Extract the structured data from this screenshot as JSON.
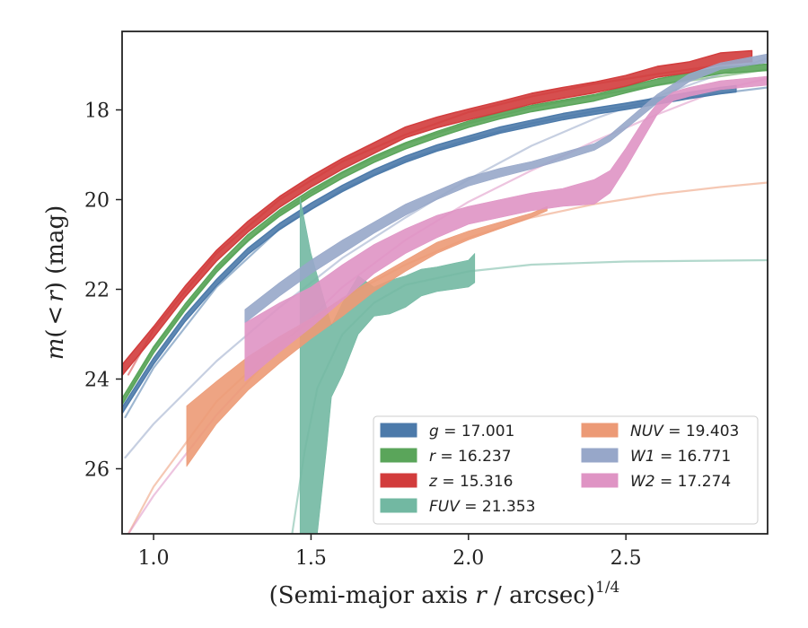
{
  "chart_data": {
    "type": "area",
    "xlabel": "(Semi-major axis r / arcsec)",
    "xlabel_main": "(Semi-major axis ",
    "xlabel_var": "r",
    "xlabel_rest": " / arcsec)",
    "xlabel_sup": "1/4",
    "ylabel_m": "m",
    "ylabel_paren_open": "(",
    "ylabel_lt": "<",
    "ylabel_r": "r",
    "ylabel_paren_close": ")",
    "ylabel_unit": " (mag)",
    "xlim": [
      0.9,
      2.95
    ],
    "ylim": [
      27.45,
      16.25
    ],
    "y_inverted": true,
    "xticks": [
      1.0,
      1.5,
      2.0,
      2.5
    ],
    "xtick_labels": [
      "1.0",
      "1.5",
      "2.0",
      "2.5"
    ],
    "yticks": [
      18,
      20,
      22,
      24,
      26
    ],
    "ytick_labels": [
      "18",
      "20",
      "22",
      "24",
      "26"
    ],
    "grid": false,
    "legend_placement": "lower-right",
    "legend": [
      {
        "band": "g",
        "value": "17.001",
        "color": "#4c7aaa"
      },
      {
        "band": "r",
        "value": "16.237",
        "color": "#5aa55a"
      },
      {
        "band": "z",
        "value": "15.316",
        "color": "#d23c3c"
      },
      {
        "band": "FUV",
        "value": "21.353",
        "color": "#72b8a2"
      },
      {
        "band": "NUV",
        "value": "19.403",
        "color": "#ec9a76"
      },
      {
        "band": "W1",
        "value": "16.771",
        "color": "#97a7c9"
      },
      {
        "band": "W2",
        "value": "17.274",
        "color": "#df94c4"
      }
    ],
    "series": [
      {
        "name": "g",
        "color": "#4c7aaa",
        "profile": [
          [
            0.9,
            24.7
          ],
          [
            1.0,
            23.6
          ],
          [
            1.1,
            22.65
          ],
          [
            1.2,
            21.85
          ],
          [
            1.3,
            21.15
          ],
          [
            1.4,
            20.6
          ],
          [
            1.5,
            20.15
          ],
          [
            1.6,
            19.75
          ],
          [
            1.7,
            19.4
          ],
          [
            1.8,
            19.1
          ],
          [
            1.9,
            18.85
          ],
          [
            2.0,
            18.65
          ],
          [
            2.1,
            18.45
          ],
          [
            2.2,
            18.3
          ],
          [
            2.3,
            18.15
          ],
          [
            2.4,
            18.03
          ],
          [
            2.5,
            17.92
          ],
          [
            2.6,
            17.8
          ],
          [
            2.7,
            17.68
          ],
          [
            2.8,
            17.57
          ],
          [
            2.85,
            17.53
          ]
        ],
        "halfwidth": 0.07,
        "model": [
          [
            0.91,
            24.85
          ],
          [
            1.0,
            23.75
          ],
          [
            1.2,
            21.95
          ],
          [
            1.4,
            20.65
          ],
          [
            1.6,
            19.78
          ],
          [
            1.8,
            19.12
          ],
          [
            2.0,
            18.66
          ],
          [
            2.2,
            18.3
          ],
          [
            2.4,
            18.03
          ],
          [
            2.6,
            17.82
          ],
          [
            2.8,
            17.63
          ],
          [
            2.95,
            17.5
          ]
        ]
      },
      {
        "name": "r",
        "color": "#5aa55a",
        "profile": [
          [
            0.9,
            24.5
          ],
          [
            1.0,
            23.35
          ],
          [
            1.1,
            22.4
          ],
          [
            1.2,
            21.55
          ],
          [
            1.3,
            20.85
          ],
          [
            1.4,
            20.3
          ],
          [
            1.5,
            19.85
          ],
          [
            1.6,
            19.45
          ],
          [
            1.7,
            19.1
          ],
          [
            1.8,
            18.8
          ],
          [
            1.9,
            18.55
          ],
          [
            2.0,
            18.32
          ],
          [
            2.1,
            18.13
          ],
          [
            2.2,
            17.97
          ],
          [
            2.3,
            17.85
          ],
          [
            2.4,
            17.73
          ],
          [
            2.5,
            17.55
          ],
          [
            2.6,
            17.38
          ],
          [
            2.7,
            17.25
          ],
          [
            2.8,
            17.12
          ],
          [
            2.95,
            17.05
          ]
        ],
        "halfwidth": 0.07,
        "model": [
          [
            0.92,
            24.3
          ],
          [
            1.0,
            23.3
          ],
          [
            1.2,
            21.55
          ],
          [
            1.4,
            20.3
          ],
          [
            1.6,
            19.4
          ],
          [
            1.8,
            18.75
          ],
          [
            2.0,
            18.3
          ],
          [
            2.2,
            17.95
          ],
          [
            2.4,
            17.68
          ],
          [
            2.6,
            17.45
          ],
          [
            2.8,
            17.25
          ],
          [
            2.95,
            17.1
          ]
        ]
      },
      {
        "name": "z",
        "color": "#d23c3c",
        "profile": [
          [
            0.9,
            23.8
          ],
          [
            1.0,
            22.95
          ],
          [
            1.1,
            22.05
          ],
          [
            1.2,
            21.25
          ],
          [
            1.3,
            20.6
          ],
          [
            1.4,
            20.05
          ],
          [
            1.5,
            19.6
          ],
          [
            1.6,
            19.2
          ],
          [
            1.7,
            18.85
          ],
          [
            1.8,
            18.5
          ],
          [
            1.9,
            18.28
          ],
          [
            2.0,
            18.1
          ],
          [
            2.1,
            17.93
          ],
          [
            2.2,
            17.75
          ],
          [
            2.3,
            17.62
          ],
          [
            2.4,
            17.5
          ],
          [
            2.5,
            17.35
          ],
          [
            2.6,
            17.15
          ],
          [
            2.7,
            17.05
          ],
          [
            2.8,
            16.85
          ],
          [
            2.9,
            16.8
          ]
        ],
        "halfwidth": 0.12,
        "model": [
          [
            0.92,
            23.9
          ],
          [
            1.0,
            22.9
          ],
          [
            1.2,
            21.2
          ],
          [
            1.4,
            20.0
          ],
          [
            1.6,
            19.15
          ],
          [
            1.8,
            18.55
          ],
          [
            2.0,
            18.05
          ],
          [
            2.2,
            17.7
          ],
          [
            2.4,
            17.42
          ],
          [
            2.6,
            17.2
          ],
          [
            2.8,
            17.0
          ],
          [
            2.9,
            16.92
          ]
        ]
      },
      {
        "name": "FUV",
        "color": "#72b8a2",
        "upper": [
          [
            1.465,
            19.95
          ],
          [
            1.5,
            21.2
          ],
          [
            1.565,
            22.8
          ],
          [
            1.6,
            22.3
          ],
          [
            1.65,
            21.7
          ],
          [
            1.7,
            21.95
          ],
          [
            1.75,
            21.8
          ],
          [
            1.8,
            21.7
          ],
          [
            1.85,
            21.55
          ],
          [
            1.9,
            21.5
          ],
          [
            2.0,
            21.35
          ],
          [
            2.02,
            21.2
          ]
        ],
        "lower": [
          [
            1.465,
            27.45
          ],
          [
            1.52,
            27.45
          ],
          [
            1.55,
            25.5
          ],
          [
            1.565,
            24.4
          ],
          [
            1.6,
            23.9
          ],
          [
            1.65,
            23.0
          ],
          [
            1.7,
            22.6
          ],
          [
            1.75,
            22.55
          ],
          [
            1.8,
            22.4
          ],
          [
            1.85,
            22.15
          ],
          [
            1.9,
            22.05
          ],
          [
            2.0,
            21.95
          ],
          [
            2.02,
            21.85
          ]
        ],
        "model": [
          [
            1.44,
            27.45
          ],
          [
            1.48,
            25.6
          ],
          [
            1.52,
            24.2
          ],
          [
            1.6,
            23.0
          ],
          [
            1.7,
            22.3
          ],
          [
            1.8,
            21.9
          ],
          [
            2.0,
            21.6
          ],
          [
            2.2,
            21.45
          ],
          [
            2.5,
            21.38
          ],
          [
            2.95,
            21.35
          ]
        ]
      },
      {
        "name": "NUV",
        "color": "#ec9a76",
        "upper": [
          [
            1.105,
            24.6
          ],
          [
            1.2,
            24.05
          ],
          [
            1.3,
            23.5
          ],
          [
            1.4,
            23.05
          ],
          [
            1.5,
            22.65
          ],
          [
            1.6,
            22.2
          ],
          [
            1.7,
            21.75
          ],
          [
            1.8,
            21.35
          ],
          [
            1.9,
            20.95
          ],
          [
            2.0,
            20.7
          ],
          [
            2.1,
            20.5
          ],
          [
            2.2,
            20.3
          ],
          [
            2.25,
            20.15
          ]
        ],
        "lower": [
          [
            1.105,
            25.95
          ],
          [
            1.2,
            25.0
          ],
          [
            1.3,
            24.25
          ],
          [
            1.4,
            23.65
          ],
          [
            1.5,
            23.1
          ],
          [
            1.6,
            22.6
          ],
          [
            1.7,
            22.05
          ],
          [
            1.8,
            21.6
          ],
          [
            1.9,
            21.2
          ],
          [
            2.0,
            20.9
          ],
          [
            2.1,
            20.65
          ],
          [
            2.2,
            20.4
          ],
          [
            2.25,
            20.25
          ]
        ],
        "model": [
          [
            0.92,
            27.45
          ],
          [
            1.0,
            26.4
          ],
          [
            1.2,
            24.5
          ],
          [
            1.4,
            23.2
          ],
          [
            1.6,
            22.2
          ],
          [
            1.8,
            21.45
          ],
          [
            2.0,
            20.85
          ],
          [
            2.2,
            20.4
          ],
          [
            2.4,
            20.1
          ],
          [
            2.6,
            19.88
          ],
          [
            2.8,
            19.72
          ],
          [
            2.95,
            19.62
          ]
        ]
      },
      {
        "name": "W1",
        "color": "#97a7c9",
        "upper": [
          [
            1.29,
            22.45
          ],
          [
            1.4,
            21.85
          ],
          [
            1.5,
            21.35
          ],
          [
            1.6,
            20.9
          ],
          [
            1.7,
            20.5
          ],
          [
            1.8,
            20.1
          ],
          [
            1.9,
            19.8
          ],
          [
            2.0,
            19.5
          ],
          [
            2.1,
            19.3
          ],
          [
            2.2,
            19.15
          ],
          [
            2.3,
            18.95
          ],
          [
            2.4,
            18.75
          ],
          [
            2.45,
            18.55
          ],
          [
            2.5,
            18.25
          ],
          [
            2.6,
            17.65
          ],
          [
            2.7,
            17.2
          ],
          [
            2.8,
            16.95
          ],
          [
            2.95,
            16.75
          ]
        ],
        "lower": [
          [
            1.29,
            22.75
          ],
          [
            1.4,
            22.15
          ],
          [
            1.5,
            21.65
          ],
          [
            1.6,
            21.2
          ],
          [
            1.7,
            20.75
          ],
          [
            1.8,
            20.35
          ],
          [
            1.9,
            20.0
          ],
          [
            2.0,
            19.7
          ],
          [
            2.1,
            19.5
          ],
          [
            2.2,
            19.32
          ],
          [
            2.3,
            19.12
          ],
          [
            2.4,
            18.9
          ],
          [
            2.45,
            18.7
          ],
          [
            2.5,
            18.42
          ],
          [
            2.6,
            17.85
          ],
          [
            2.7,
            17.38
          ],
          [
            2.8,
            17.1
          ],
          [
            2.95,
            16.95
          ]
        ],
        "model": [
          [
            0.91,
            25.75
          ],
          [
            1.0,
            25.0
          ],
          [
            1.2,
            23.6
          ],
          [
            1.4,
            22.4
          ],
          [
            1.6,
            21.3
          ],
          [
            1.8,
            20.4
          ],
          [
            2.0,
            19.55
          ],
          [
            2.2,
            18.8
          ],
          [
            2.4,
            18.2
          ],
          [
            2.6,
            17.7
          ],
          [
            2.8,
            17.2
          ],
          [
            2.95,
            16.85
          ]
        ]
      },
      {
        "name": "W2",
        "color": "#df94c4",
        "upper": [
          [
            1.29,
            22.75
          ],
          [
            1.4,
            22.3
          ],
          [
            1.5,
            21.95
          ],
          [
            1.6,
            21.45
          ],
          [
            1.7,
            21.0
          ],
          [
            1.8,
            20.65
          ],
          [
            1.9,
            20.35
          ],
          [
            2.0,
            20.15
          ],
          [
            2.1,
            20.0
          ],
          [
            2.2,
            19.85
          ],
          [
            2.3,
            19.75
          ],
          [
            2.4,
            19.55
          ],
          [
            2.45,
            19.35
          ],
          [
            2.5,
            18.85
          ],
          [
            2.55,
            18.3
          ],
          [
            2.6,
            17.85
          ],
          [
            2.65,
            17.6
          ],
          [
            2.7,
            17.5
          ],
          [
            2.8,
            17.35
          ],
          [
            2.95,
            17.25
          ]
        ],
        "lower": [
          [
            1.29,
            24.05
          ],
          [
            1.4,
            23.4
          ],
          [
            1.5,
            22.85
          ],
          [
            1.6,
            22.25
          ],
          [
            1.7,
            21.65
          ],
          [
            1.8,
            21.2
          ],
          [
            1.9,
            20.85
          ],
          [
            2.0,
            20.55
          ],
          [
            2.1,
            20.4
          ],
          [
            2.2,
            20.25
          ],
          [
            2.3,
            20.15
          ],
          [
            2.4,
            20.1
          ],
          [
            2.45,
            19.85
          ],
          [
            2.5,
            19.3
          ],
          [
            2.55,
            18.7
          ],
          [
            2.6,
            18.1
          ],
          [
            2.65,
            17.8
          ],
          [
            2.7,
            17.7
          ],
          [
            2.8,
            17.55
          ],
          [
            2.95,
            17.45
          ]
        ],
        "model": [
          [
            0.92,
            27.45
          ],
          [
            1.0,
            26.6
          ],
          [
            1.2,
            24.8
          ],
          [
            1.4,
            23.3
          ],
          [
            1.6,
            21.95
          ],
          [
            1.8,
            20.9
          ],
          [
            2.0,
            20.05
          ],
          [
            2.2,
            19.35
          ],
          [
            2.4,
            18.7
          ],
          [
            2.6,
            18.1
          ],
          [
            2.8,
            17.55
          ],
          [
            2.95,
            17.3
          ]
        ]
      }
    ]
  }
}
